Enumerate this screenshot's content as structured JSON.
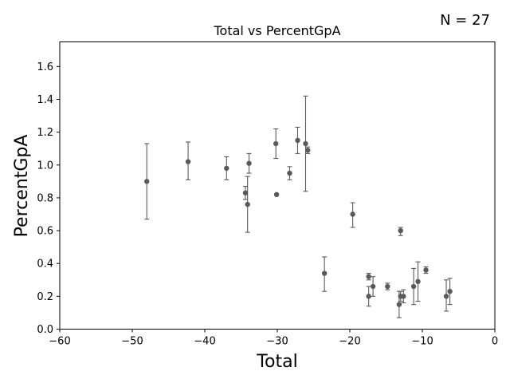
{
  "chart_data": {
    "type": "scatter",
    "title": "Total vs PercentGpA",
    "annotation": "N = 27",
    "xlabel": "Total",
    "ylabel": "PercentGpA",
    "xlim": [
      -60,
      0
    ],
    "ylim": [
      0,
      1.75
    ],
    "xticks": [
      -60,
      -50,
      -40,
      -30,
      -20,
      -10,
      0
    ],
    "yticks": [
      0.0,
      0.2,
      0.4,
      0.6,
      0.8,
      1.0,
      1.2,
      1.4,
      1.6
    ],
    "ytick_labels": [
      "0.0",
      "0.2",
      "0.4",
      "0.6",
      "0.8",
      "1.0",
      "1.2",
      "1.4",
      "1.6"
    ],
    "grid": false,
    "marker_color": "#5a5a5a",
    "error_color": "#5a5a5a",
    "points": [
      {
        "x": -48.0,
        "y": 0.9,
        "lo": 0.67,
        "hi": 1.13
      },
      {
        "x": -42.3,
        "y": 1.02,
        "lo": 0.91,
        "hi": 1.14
      },
      {
        "x": -37.0,
        "y": 0.98,
        "lo": 0.91,
        "hi": 1.05
      },
      {
        "x": -34.4,
        "y": 0.83,
        "lo": 0.79,
        "hi": 0.87
      },
      {
        "x": -34.1,
        "y": 0.76,
        "lo": 0.59,
        "hi": 0.93
      },
      {
        "x": -33.9,
        "y": 1.01,
        "lo": 0.95,
        "hi": 1.07
      },
      {
        "x": -30.2,
        "y": 1.13,
        "lo": 1.04,
        "hi": 1.22
      },
      {
        "x": -30.1,
        "y": 0.82,
        "lo": 0.82,
        "hi": 0.82
      },
      {
        "x": -28.3,
        "y": 0.95,
        "lo": 0.91,
        "hi": 0.99
      },
      {
        "x": -27.2,
        "y": 1.15,
        "lo": 1.07,
        "hi": 1.23
      },
      {
        "x": -26.1,
        "y": 1.13,
        "lo": 0.84,
        "hi": 1.42
      },
      {
        "x": -25.8,
        "y": 1.09,
        "lo": 1.07,
        "hi": 1.11
      },
      {
        "x": -23.5,
        "y": 0.34,
        "lo": 0.23,
        "hi": 0.44
      },
      {
        "x": -19.6,
        "y": 0.7,
        "lo": 0.62,
        "hi": 0.77
      },
      {
        "x": -17.4,
        "y": 0.32,
        "lo": 0.3,
        "hi": 0.34
      },
      {
        "x": -17.4,
        "y": 0.2,
        "lo": 0.14,
        "hi": 0.26
      },
      {
        "x": -16.8,
        "y": 0.26,
        "lo": 0.2,
        "hi": 0.32
      },
      {
        "x": -14.8,
        "y": 0.26,
        "lo": 0.24,
        "hi": 0.28
      },
      {
        "x": -13.2,
        "y": 0.15,
        "lo": 0.07,
        "hi": 0.23
      },
      {
        "x": -13.0,
        "y": 0.6,
        "lo": 0.57,
        "hi": 0.62
      },
      {
        "x": -13.0,
        "y": 0.2,
        "lo": 0.17,
        "hi": 0.23
      },
      {
        "x": -12.6,
        "y": 0.2,
        "lo": 0.16,
        "hi": 0.24
      },
      {
        "x": -11.2,
        "y": 0.26,
        "lo": 0.15,
        "hi": 0.37
      },
      {
        "x": -10.6,
        "y": 0.29,
        "lo": 0.17,
        "hi": 0.41
      },
      {
        "x": -9.5,
        "y": 0.36,
        "lo": 0.34,
        "hi": 0.38
      },
      {
        "x": -6.7,
        "y": 0.2,
        "lo": 0.11,
        "hi": 0.3
      },
      {
        "x": -6.2,
        "y": 0.23,
        "lo": 0.15,
        "hi": 0.31
      }
    ]
  }
}
